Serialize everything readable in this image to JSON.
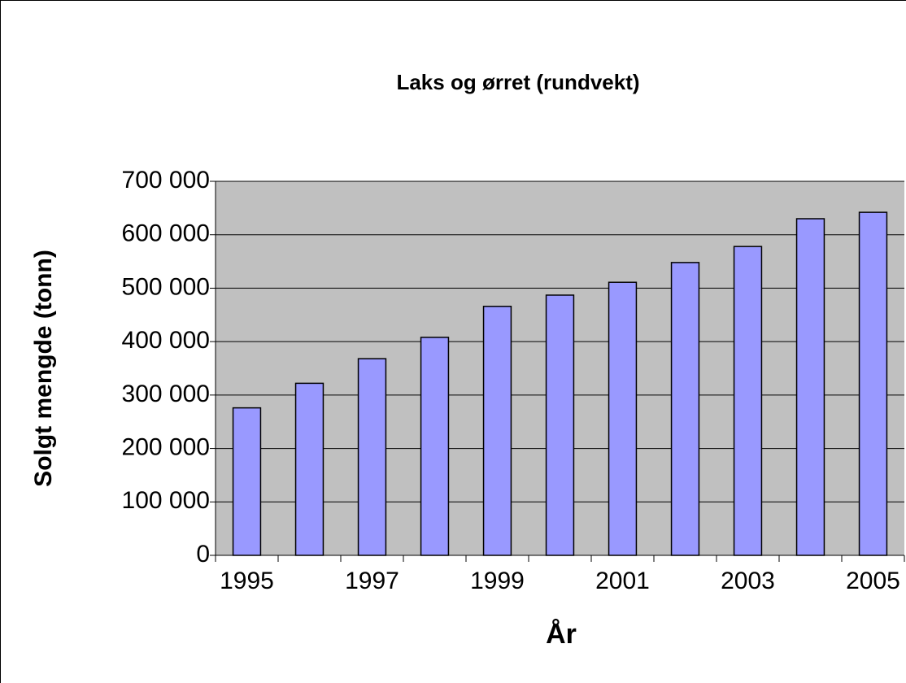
{
  "chart_data": {
    "type": "bar",
    "title": "Laks og ørret (rundvekt)",
    "x_label": "År",
    "y_label": "Solgt mengde (tonn)",
    "categories": [
      "1995",
      null,
      "1997",
      null,
      "1999",
      null,
      "2001",
      null,
      "2003",
      null,
      "2005"
    ],
    "values": [
      276000,
      322000,
      368000,
      408000,
      466000,
      487000,
      511000,
      548000,
      578000,
      630000,
      642000
    ],
    "color": "#9999ff",
    "plot_background": "#c0c0c0",
    "ylim": [
      0,
      700000
    ],
    "yticks": [
      0,
      {
        "value": 100000,
        "label": "100 000"
      },
      {
        "value": 200000,
        "label": "200 000"
      },
      {
        "value": 300000,
        "label": "300 000"
      },
      {
        "value": 400000,
        "label": "400 000"
      },
      {
        "value": 500000,
        "label": "500 000"
      },
      {
        "value": 600000,
        "label": "600 000"
      },
      {
        "value": 700000,
        "label": "700 000"
      }
    ],
    "grid": true
  }
}
